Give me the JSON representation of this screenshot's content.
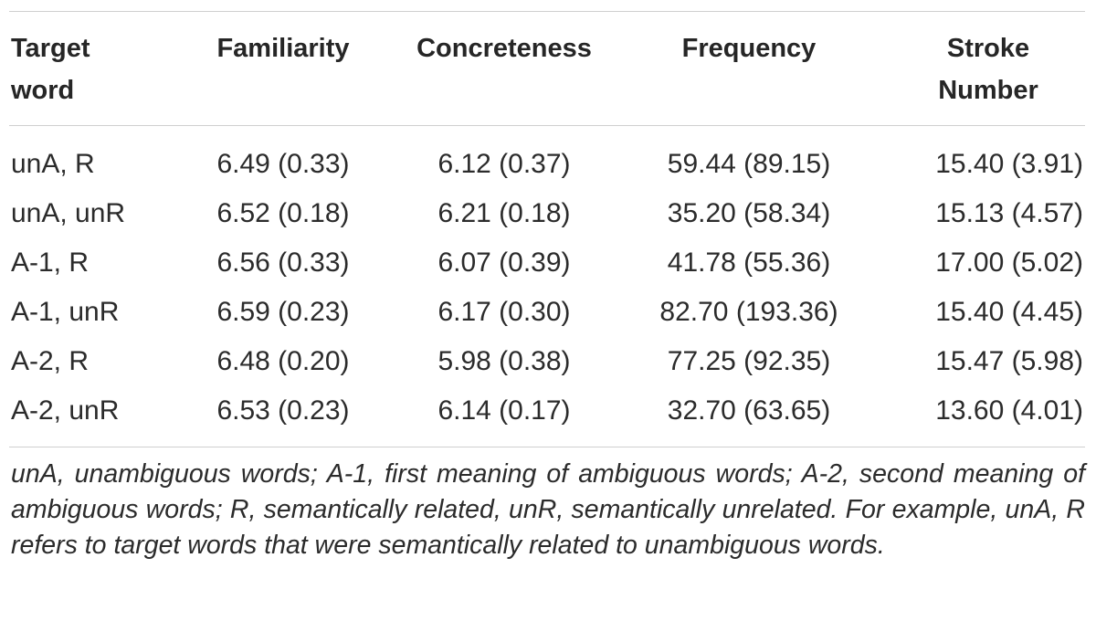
{
  "table": {
    "headers": [
      [
        "Target",
        "word"
      ],
      [
        "Familiarity"
      ],
      [
        "Concreteness"
      ],
      [
        "Frequency"
      ],
      [
        "Stroke",
        "Number"
      ]
    ],
    "rows": [
      [
        "unA, R",
        "6.49 (0.33)",
        "6.12 (0.37)",
        "59.44 (89.15)",
        "15.40 (3.91)"
      ],
      [
        "unA, unR",
        "6.52 (0.18)",
        "6.21 (0.18)",
        "35.20 (58.34)",
        "15.13 (4.57)"
      ],
      [
        "A-1, R",
        "6.56 (0.33)",
        "6.07 (0.39)",
        "41.78 (55.36)",
        "17.00 (5.02)"
      ],
      [
        "A-1, unR",
        "6.59 (0.23)",
        "6.17 (0.30)",
        "82.70 (193.36)",
        "15.40 (4.45)"
      ],
      [
        "A-2, R",
        "6.48 (0.20)",
        "5.98 (0.38)",
        "77.25 (92.35)",
        "15.47 (5.98)"
      ],
      [
        "A-2, unR",
        "6.53 (0.23)",
        "6.14 (0.17)",
        "32.70 (63.65)",
        "13.60 (4.01)"
      ]
    ],
    "footnote": "unA, unambiguous words; A-1, first meaning of ambiguous words; A-2, second meaning of ambiguous words; R, semantically related, unR, semantically unrelated. For example, unA, R refers to target words that were semantically related to unambiguous words."
  }
}
